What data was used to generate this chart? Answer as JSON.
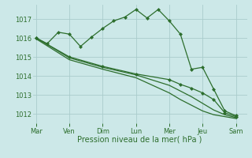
{
  "bg_color": "#cce8e8",
  "grid_color": "#aacccc",
  "line_color": "#2d6e2d",
  "marker_color": "#2d6e2d",
  "xlabel": "Pression niveau de la mer( hPa )",
  "xlabel_color": "#2d6e2d",
  "tick_color": "#2d6e2d",
  "ylim": [
    1011.5,
    1017.75
  ],
  "yticks": [
    1012,
    1013,
    1014,
    1015,
    1016,
    1017
  ],
  "xtick_labels": [
    "Mar",
    "Ven",
    "Dim",
    "Lun",
    "Mer",
    "Jeu",
    "Sam"
  ],
  "xtick_positions": [
    0,
    3,
    6,
    9,
    12,
    15,
    18
  ],
  "xlim": [
    -0.3,
    19.0
  ],
  "series1_x": [
    0,
    1,
    2,
    3,
    4,
    5,
    6,
    7,
    8,
    9,
    10,
    11,
    12,
    13,
    14,
    15,
    16,
    17,
    18
  ],
  "series1_y": [
    1016.0,
    1015.7,
    1016.3,
    1016.2,
    1015.55,
    1016.05,
    1016.5,
    1016.9,
    1017.1,
    1017.5,
    1017.05,
    1017.5,
    1016.9,
    1016.2,
    1014.35,
    1014.45,
    1013.3,
    1012.15,
    1011.9
  ],
  "series2_x": [
    0,
    3,
    6,
    9,
    12,
    13,
    14,
    15,
    16,
    17,
    18
  ],
  "series2_y": [
    1016.0,
    1015.0,
    1014.5,
    1014.1,
    1013.8,
    1013.55,
    1013.35,
    1013.1,
    1012.75,
    1012.05,
    1011.85
  ],
  "series3_x": [
    0,
    3,
    6,
    9,
    12,
    13,
    14,
    15,
    16,
    17,
    18
  ],
  "series3_y": [
    1016.0,
    1014.95,
    1014.45,
    1014.05,
    1013.5,
    1013.2,
    1012.9,
    1012.55,
    1012.2,
    1011.95,
    1011.8
  ],
  "series4_x": [
    0,
    3,
    6,
    9,
    12,
    13,
    14,
    15,
    16,
    17,
    18
  ],
  "series4_y": [
    1015.95,
    1014.85,
    1014.35,
    1013.9,
    1013.1,
    1012.75,
    1012.45,
    1012.15,
    1011.95,
    1011.85,
    1011.75
  ]
}
